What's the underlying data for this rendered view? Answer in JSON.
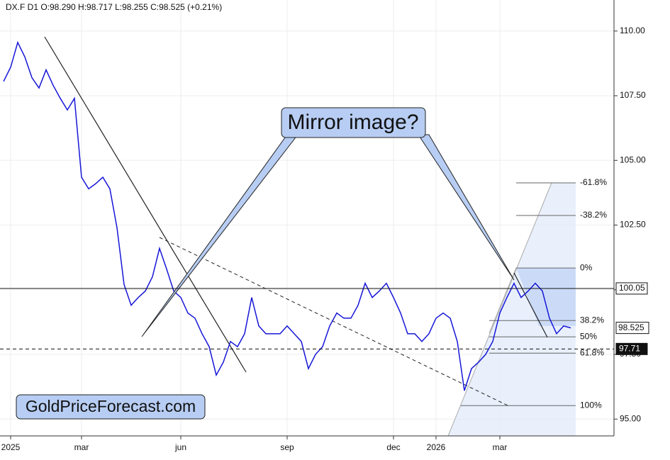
{
  "chart_data": {
    "type": "line",
    "title": "DX.F  D1  O:98.290  H:98.717  L:98.255  C:98.525  (+0.21%)",
    "annotations": [
      "Mirror image?",
      "GoldPriceForecast.com"
    ],
    "categories": [
      null,
      "2025",
      null,
      null,
      null,
      null,
      null,
      null,
      null,
      null,
      null,
      "mar",
      null,
      null,
      null,
      null,
      null,
      null,
      null,
      null,
      null,
      null,
      null,
      null,
      null,
      "jun",
      null,
      null,
      null,
      null,
      null,
      null,
      null,
      null,
      null,
      null,
      null,
      null,
      null,
      null,
      "sep",
      null,
      null,
      null,
      null,
      null,
      null,
      null,
      null,
      null,
      null,
      null,
      null,
      null,
      null,
      "dec",
      null,
      null,
      null,
      null,
      null,
      "2026",
      null,
      null,
      null,
      null,
      null,
      null,
      null,
      null,
      "mar",
      null,
      null,
      null,
      null,
      null,
      null,
      null,
      null,
      null,
      null
    ],
    "values": [
      108.05,
      108.6,
      109.56,
      109.0,
      108.2,
      107.8,
      108.5,
      107.9,
      107.4,
      106.95,
      107.4,
      104.35,
      103.9,
      104.1,
      104.35,
      103.9,
      102.4,
      100.2,
      99.4,
      99.7,
      99.95,
      100.5,
      101.6,
      100.8,
      99.95,
      99.7,
      99.1,
      98.9,
      98.3,
      97.8,
      96.7,
      97.2,
      98.0,
      97.8,
      98.3,
      99.7,
      98.6,
      98.3,
      98.3,
      98.3,
      98.6,
      98.3,
      98.0,
      96.95,
      97.5,
      97.8,
      98.6,
      99.1,
      98.9,
      98.9,
      99.4,
      100.25,
      99.7,
      99.95,
      100.25,
      99.7,
      99.1,
      98.3,
      98.3,
      98.0,
      98.3,
      98.9,
      99.1,
      98.9,
      98.0,
      96.1,
      96.95,
      97.2,
      97.5,
      98.0,
      99.1,
      99.7,
      100.25,
      99.7,
      99.95,
      100.25,
      99.95,
      98.9,
      98.3,
      98.6,
      98.525
    ],
    "color": "#1616d8",
    "ylim": [
      94.35,
      111.2
    ],
    "yticks": [
      {
        "value": 95,
        "label": "95.00"
      },
      {
        "value": 97.5,
        "label": "97.50"
      },
      {
        "value": 100,
        "label": "100.00"
      },
      {
        "value": 102.5,
        "label": "102.50"
      },
      {
        "value": 105,
        "label": "105.00"
      },
      {
        "value": 107.5,
        "label": "107.50"
      },
      {
        "value": 110,
        "label": "110.00"
      }
    ],
    "grid": true,
    "price_lines": [
      {
        "value": 100.05,
        "label": "100.05",
        "style": "solid"
      },
      {
        "value": 97.71,
        "label": "97.71",
        "style": "dashed"
      }
    ],
    "fib_levels": [
      {
        "value": 104.13,
        "label": "-61.8%"
      },
      {
        "value": 102.87,
        "label": "-38.2%"
      },
      {
        "value": 100.84,
        "label": "0%"
      },
      {
        "value": 98.81,
        "label": "38.2%"
      },
      {
        "value": 98.18,
        "label": "50%"
      },
      {
        "value": 97.55,
        "label": "61.8%"
      },
      {
        "value": 95.52,
        "label": "100%"
      }
    ]
  }
}
